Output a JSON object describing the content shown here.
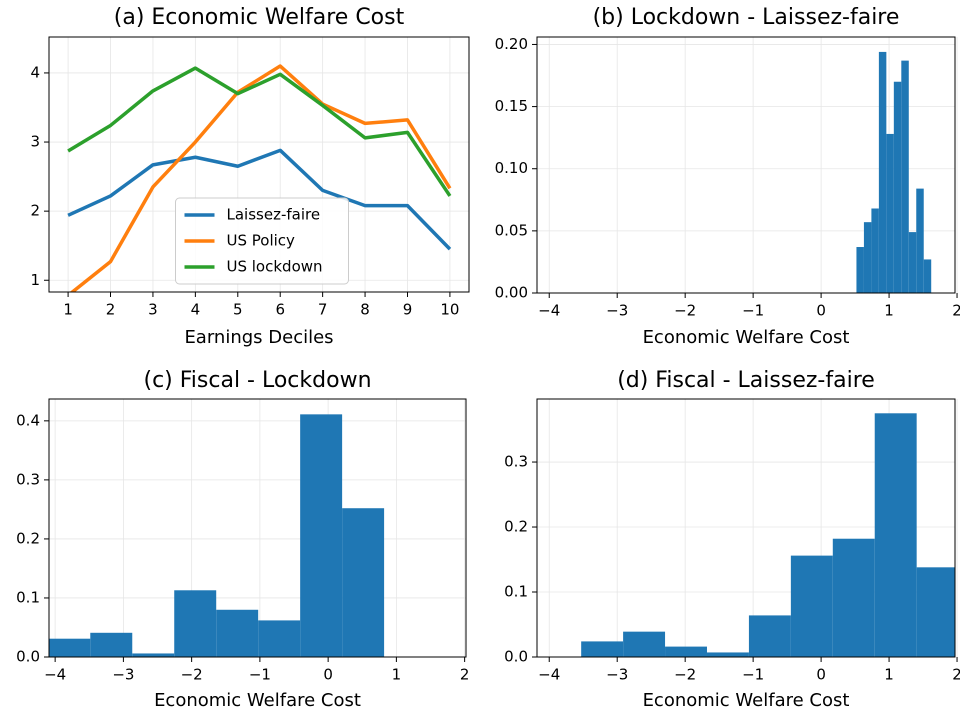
{
  "chart_data": [
    {
      "type": "line",
      "title": "(a) Economic Welfare Cost",
      "xlabel": "Earnings Deciles",
      "x": [
        1,
        2,
        3,
        4,
        5,
        6,
        7,
        8,
        9,
        10
      ],
      "series": [
        {
          "name": "Laissez-faire",
          "color": "#1f77b4",
          "values": [
            1.94,
            2.22,
            2.67,
            2.78,
            2.65,
            2.88,
            2.3,
            2.08,
            2.08,
            1.45
          ]
        },
        {
          "name": "US Policy",
          "color": "#ff7f0e",
          "values": [
            0.78,
            1.27,
            2.35,
            3.0,
            3.72,
            4.1,
            3.55,
            3.27,
            3.32,
            2.33
          ]
        },
        {
          "name": "US lockdown",
          "color": "#2ca02c",
          "values": [
            2.87,
            3.24,
            3.74,
            4.07,
            3.7,
            3.98,
            3.53,
            3.06,
            3.14,
            2.22
          ]
        }
      ],
      "xlim": [
        0.55,
        10.45
      ],
      "ylim": [
        0.83,
        4.52
      ],
      "xticks": [
        1,
        2,
        3,
        4,
        5,
        6,
        7,
        8,
        9,
        10
      ],
      "yticks": [
        1,
        2,
        3,
        4
      ],
      "grid": true,
      "legend": "lower center"
    },
    {
      "type": "histogram",
      "title": "(b) Lockdown - Laissez-faire",
      "xlabel": "Economic Welfare Cost",
      "color": "#1f77b4",
      "bins": [
        0.52,
        0.63,
        0.74,
        0.85,
        0.96,
        1.07,
        1.18,
        1.29,
        1.4,
        1.51,
        1.62
      ],
      "values": [
        0.037,
        0.057,
        0.068,
        0.194,
        0.128,
        0.17,
        0.187,
        0.049,
        0.084,
        0.027
      ],
      "xlim": [
        -4.18,
        1.97
      ],
      "ylim": [
        0,
        0.206
      ],
      "xticks": [
        {
          "value": -4,
          "label": "−4"
        },
        {
          "value": -3,
          "label": "−3"
        },
        {
          "value": -2,
          "label": "−2"
        },
        {
          "value": -1,
          "label": "−1"
        },
        0,
        1,
        2
      ],
      "yticks": [
        {
          "value": 0,
          "label": "0.00"
        },
        {
          "value": 0.05,
          "label": "0.05"
        },
        {
          "value": 0.1,
          "label": "0.10"
        },
        {
          "value": 0.15,
          "label": "0.15"
        },
        {
          "value": 0.2,
          "label": "0.20"
        }
      ],
      "grid": true
    },
    {
      "type": "histogram",
      "title": "(c) Fiscal - Lockdown",
      "xlabel": "Economic Welfare Cost",
      "color": "#1f77b4",
      "bins": [
        -4.1,
        -3.485,
        -2.87,
        -2.255,
        -1.64,
        -1.025,
        -0.41,
        0.205,
        0.82
      ],
      "values": [
        0.031,
        0.041,
        0.006,
        0.113,
        0.08,
        0.062,
        0.411,
        0.252
      ],
      "xlim": [
        -4.09,
        2.02
      ],
      "ylim": [
        0,
        0.437
      ],
      "xticks": [
        {
          "value": -4,
          "label": "−4"
        },
        {
          "value": -3,
          "label": "−3"
        },
        {
          "value": -2,
          "label": "−2"
        },
        {
          "value": -1,
          "label": "−1"
        },
        0,
        1,
        2
      ],
      "yticks": [
        {
          "value": 0,
          "label": "0.0"
        },
        0.1,
        0.2,
        0.3,
        0.4
      ],
      "grid": true
    },
    {
      "type": "histogram",
      "title": "(d) Fiscal - Laissez-faire",
      "xlabel": "Economic Welfare Cost",
      "color": "#1f77b4",
      "bins": [
        -3.53,
        -2.913,
        -2.296,
        -1.679,
        -1.062,
        -0.445,
        0.172,
        0.789,
        1.406,
        2.023
      ],
      "values": [
        0.024,
        0.039,
        0.016,
        0.007,
        0.064,
        0.156,
        0.182,
        0.375,
        0.138
      ],
      "xlim": [
        -4.18,
        1.97
      ],
      "ylim": [
        0,
        0.397
      ],
      "xticks": [
        {
          "value": -4,
          "label": "−4"
        },
        {
          "value": -3,
          "label": "−3"
        },
        {
          "value": -2,
          "label": "−2"
        },
        {
          "value": -1,
          "label": "−1"
        },
        0,
        1,
        2
      ],
      "yticks": [
        {
          "value": 0,
          "label": "0.0"
        },
        0.1,
        0.2,
        0.3
      ],
      "grid": true
    }
  ]
}
